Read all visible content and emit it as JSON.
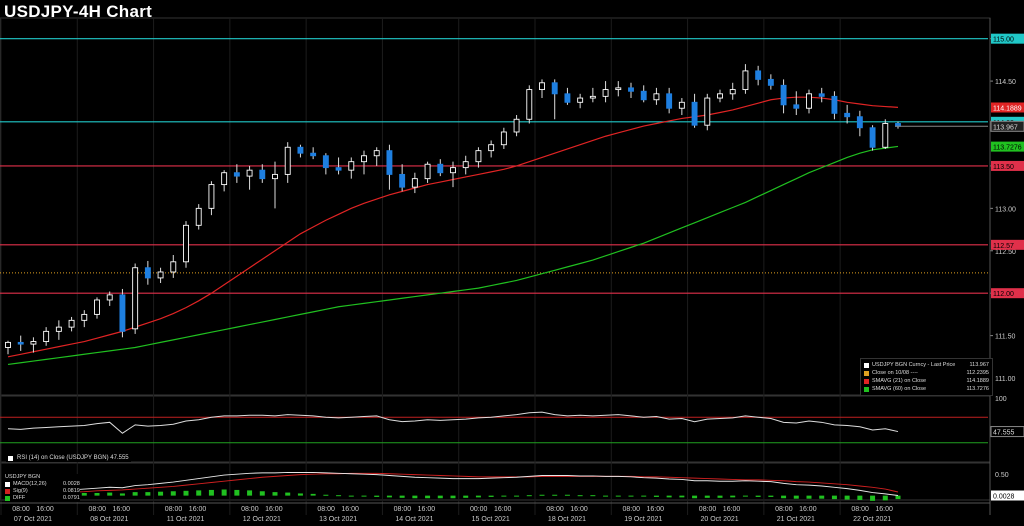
{
  "title": "USDJPY-4H Chart",
  "colors": {
    "bg": "#000000",
    "up": "#ffffff",
    "down": "#1e7fe0",
    "sma21": "#e02424",
    "sma60": "#20c020",
    "hline_red": "#e0304a",
    "hline_cyan": "#20c8c8",
    "dotted": "#e0a020",
    "grid": "#222222",
    "rsi": "#dddddd",
    "macd": "#e8e8e8",
    "signal": "#d02020",
    "diff_pos": "#20c020"
  },
  "legend": [
    {
      "label": "USDJPY BGN Curncy - Last Price",
      "value": "113.967",
      "color": "#ffffff"
    },
    {
      "label": "Close on 10/08 ----",
      "value": "112.2395",
      "color": "#e0a020"
    },
    {
      "label": "SMAVG (21)  on Close",
      "value": "114.1889",
      "color": "#e02424"
    },
    {
      "label": "SMAVG (60)  on Close",
      "value": "113.7276",
      "color": "#20c020"
    }
  ],
  "rsi_legend": {
    "label": "RSI (14)  on Close (USDJPY BGN)",
    "value": "47.555"
  },
  "macd_legend": {
    "title": "USDJPY BGN",
    "rows": [
      {
        "label": "MACD(12,26)",
        "value": "0.0028",
        "color": "#ffffff"
      },
      {
        "label": "Sig(9)",
        "value": "0.0819",
        "color": "#d02020"
      },
      {
        "label": "DIFF",
        "value": "0.0791",
        "color": "#20c020"
      }
    ]
  },
  "chart_data": {
    "type": "candlestick",
    "title": "USDJPY-4H Chart",
    "price_axis": {
      "ylim": [
        110.8,
        115.22
      ],
      "ticks": [
        "115.00",
        "114.50",
        "114.00",
        "113.50",
        "113.00",
        "112.50",
        "112.00",
        "111.50",
        "111.00"
      ]
    },
    "rsi_axis": {
      "ylim": [
        0,
        100
      ],
      "ticks": [
        "100",
        "50"
      ],
      "current": "47.555",
      "upper_band": 70,
      "lower_band": 30
    },
    "macd_axis": {
      "ylim": [
        -0.1,
        0.7
      ],
      "ticks": [
        "0.50",
        "0.00"
      ],
      "current": "0.0028"
    },
    "x_time_labels": [
      "08:00",
      "16:00",
      "08:00",
      "16:00",
      "08:00",
      "16:00",
      "08:00",
      "16:00",
      "08:00",
      "16:00",
      "08:00",
      "16:00",
      "00:00",
      "16:00",
      "08:00",
      "16:00",
      "08:00",
      "16:00",
      "08:00",
      "16:00",
      "08:00",
      "16:00",
      "08:00",
      "16:00"
    ],
    "x_date_labels": [
      "07 Oct 2021",
      "08 Oct 2021",
      "11 Oct 2021",
      "12 Oct 2021",
      "13 Oct 2021",
      "14 Oct 2021",
      "15 Oct 2021",
      "18 Oct 2021",
      "19 Oct 2021",
      "20 Oct 2021",
      "21 Oct 2021",
      "22 Oct 2021"
    ],
    "h_lines": [
      {
        "value": 115.0,
        "label": "115.00",
        "color": "#20c8c8"
      },
      {
        "value": 114.02,
        "label": "114.02",
        "color": "#20c8c8"
      },
      {
        "value": 113.5,
        "label": "113.50",
        "color": "#e0304a"
      },
      {
        "value": 112.57,
        "label": "112.57",
        "color": "#e0304a"
      },
      {
        "value": 112.0,
        "label": "112.00",
        "color": "#e0304a"
      }
    ],
    "dotted_line": {
      "value": 112.2395
    },
    "last_price": {
      "value": 113.967,
      "label": "113.967"
    },
    "sma21_label": {
      "value": 114.1889,
      "label": "114.1889"
    },
    "sma60_label": {
      "value": 113.7276,
      "label": "113.7276"
    },
    "candles": [
      {
        "o": 111.36,
        "h": 111.44,
        "l": 111.28,
        "c": 111.42
      },
      {
        "o": 111.42,
        "h": 111.5,
        "l": 111.32,
        "c": 111.4
      },
      {
        "o": 111.4,
        "h": 111.48,
        "l": 111.3,
        "c": 111.43
      },
      {
        "o": 111.43,
        "h": 111.6,
        "l": 111.38,
        "c": 111.55
      },
      {
        "o": 111.55,
        "h": 111.68,
        "l": 111.45,
        "c": 111.6
      },
      {
        "o": 111.6,
        "h": 111.72,
        "l": 111.55,
        "c": 111.68
      },
      {
        "o": 111.68,
        "h": 111.8,
        "l": 111.6,
        "c": 111.75
      },
      {
        "o": 111.75,
        "h": 111.95,
        "l": 111.7,
        "c": 111.92
      },
      {
        "o": 111.92,
        "h": 112.02,
        "l": 111.85,
        "c": 111.98
      },
      {
        "o": 111.98,
        "h": 112.05,
        "l": 111.48,
        "c": 111.55
      },
      {
        "o": 111.58,
        "h": 112.35,
        "l": 111.52,
        "c": 112.3
      },
      {
        "o": 112.3,
        "h": 112.38,
        "l": 112.1,
        "c": 112.18
      },
      {
        "o": 112.18,
        "h": 112.3,
        "l": 112.12,
        "c": 112.25
      },
      {
        "o": 112.25,
        "h": 112.45,
        "l": 112.18,
        "c": 112.37
      },
      {
        "o": 112.37,
        "h": 112.85,
        "l": 112.3,
        "c": 112.8
      },
      {
        "o": 112.8,
        "h": 113.05,
        "l": 112.75,
        "c": 113.0
      },
      {
        "o": 113.0,
        "h": 113.32,
        "l": 112.92,
        "c": 113.28
      },
      {
        "o": 113.28,
        "h": 113.45,
        "l": 113.2,
        "c": 113.42
      },
      {
        "o": 113.42,
        "h": 113.52,
        "l": 113.3,
        "c": 113.38
      },
      {
        "o": 113.38,
        "h": 113.5,
        "l": 113.22,
        "c": 113.45
      },
      {
        "o": 113.45,
        "h": 113.52,
        "l": 113.3,
        "c": 113.35
      },
      {
        "o": 113.35,
        "h": 113.55,
        "l": 113.0,
        "c": 113.4
      },
      {
        "o": 113.4,
        "h": 113.78,
        "l": 113.3,
        "c": 113.72
      },
      {
        "o": 113.72,
        "h": 113.75,
        "l": 113.6,
        "c": 113.65
      },
      {
        "o": 113.65,
        "h": 113.72,
        "l": 113.58,
        "c": 113.62
      },
      {
        "o": 113.62,
        "h": 113.65,
        "l": 113.4,
        "c": 113.48
      },
      {
        "o": 113.48,
        "h": 113.6,
        "l": 113.4,
        "c": 113.45
      },
      {
        "o": 113.45,
        "h": 113.6,
        "l": 113.35,
        "c": 113.55
      },
      {
        "o": 113.55,
        "h": 113.68,
        "l": 113.4,
        "c": 113.62
      },
      {
        "o": 113.62,
        "h": 113.72,
        "l": 113.5,
        "c": 113.68
      },
      {
        "o": 113.68,
        "h": 113.75,
        "l": 113.22,
        "c": 113.4
      },
      {
        "o": 113.4,
        "h": 113.52,
        "l": 113.2,
        "c": 113.25
      },
      {
        "o": 113.25,
        "h": 113.42,
        "l": 113.18,
        "c": 113.35
      },
      {
        "o": 113.35,
        "h": 113.55,
        "l": 113.3,
        "c": 113.52
      },
      {
        "o": 113.52,
        "h": 113.58,
        "l": 113.38,
        "c": 113.42
      },
      {
        "o": 113.42,
        "h": 113.55,
        "l": 113.25,
        "c": 113.48
      },
      {
        "o": 113.48,
        "h": 113.62,
        "l": 113.4,
        "c": 113.55
      },
      {
        "o": 113.55,
        "h": 113.72,
        "l": 113.48,
        "c": 113.68
      },
      {
        "o": 113.68,
        "h": 113.8,
        "l": 113.6,
        "c": 113.75
      },
      {
        "o": 113.75,
        "h": 113.95,
        "l": 113.7,
        "c": 113.9
      },
      {
        "o": 113.9,
        "h": 114.1,
        "l": 113.85,
        "c": 114.05
      },
      {
        "o": 114.05,
        "h": 114.45,
        "l": 114.0,
        "c": 114.4
      },
      {
        "o": 114.4,
        "h": 114.52,
        "l": 114.3,
        "c": 114.48
      },
      {
        "o": 114.48,
        "h": 114.52,
        "l": 114.05,
        "c": 114.35
      },
      {
        "o": 114.35,
        "h": 114.42,
        "l": 114.22,
        "c": 114.25
      },
      {
        "o": 114.25,
        "h": 114.35,
        "l": 114.18,
        "c": 114.3
      },
      {
        "o": 114.3,
        "h": 114.42,
        "l": 114.25,
        "c": 114.32
      },
      {
        "o": 114.32,
        "h": 114.5,
        "l": 114.25,
        "c": 114.4
      },
      {
        "o": 114.4,
        "h": 114.5,
        "l": 114.32,
        "c": 114.42
      },
      {
        "o": 114.42,
        "h": 114.48,
        "l": 114.3,
        "c": 114.38
      },
      {
        "o": 114.38,
        "h": 114.45,
        "l": 114.25,
        "c": 114.28
      },
      {
        "o": 114.28,
        "h": 114.42,
        "l": 114.22,
        "c": 114.35
      },
      {
        "o": 114.35,
        "h": 114.42,
        "l": 114.12,
        "c": 114.18
      },
      {
        "o": 114.18,
        "h": 114.3,
        "l": 114.1,
        "c": 114.25
      },
      {
        "o": 114.25,
        "h": 114.35,
        "l": 113.95,
        "c": 113.98
      },
      {
        "o": 113.98,
        "h": 114.35,
        "l": 113.92,
        "c": 114.3
      },
      {
        "o": 114.3,
        "h": 114.4,
        "l": 114.25,
        "c": 114.35
      },
      {
        "o": 114.35,
        "h": 114.48,
        "l": 114.28,
        "c": 114.4
      },
      {
        "o": 114.4,
        "h": 114.7,
        "l": 114.35,
        "c": 114.62
      },
      {
        "o": 114.62,
        "h": 114.68,
        "l": 114.45,
        "c": 114.52
      },
      {
        "o": 114.52,
        "h": 114.58,
        "l": 114.4,
        "c": 114.45
      },
      {
        "o": 114.45,
        "h": 114.52,
        "l": 114.12,
        "c": 114.22
      },
      {
        "o": 114.22,
        "h": 114.38,
        "l": 114.1,
        "c": 114.18
      },
      {
        "o": 114.18,
        "h": 114.4,
        "l": 114.12,
        "c": 114.35
      },
      {
        "o": 114.35,
        "h": 114.42,
        "l": 114.25,
        "c": 114.32
      },
      {
        "o": 114.32,
        "h": 114.38,
        "l": 114.05,
        "c": 114.12
      },
      {
        "o": 114.12,
        "h": 114.22,
        "l": 114.0,
        "c": 114.08
      },
      {
        "o": 114.08,
        "h": 114.15,
        "l": 113.85,
        "c": 113.95
      },
      {
        "o": 113.95,
        "h": 113.98,
        "l": 113.68,
        "c": 113.72
      },
      {
        "o": 113.72,
        "h": 114.05,
        "l": 113.7,
        "c": 114.0
      },
      {
        "o": 114.0,
        "h": 114.02,
        "l": 113.94,
        "c": 113.967
      }
    ],
    "sma21": [
      111.25,
      111.28,
      111.31,
      111.34,
      111.37,
      111.4,
      111.43,
      111.47,
      111.51,
      111.55,
      111.6,
      111.65,
      111.7,
      111.76,
      111.83,
      111.91,
      112.0,
      112.1,
      112.2,
      112.3,
      112.4,
      112.5,
      112.6,
      112.7,
      112.78,
      112.86,
      112.93,
      113.0,
      113.06,
      113.11,
      113.16,
      113.2,
      113.24,
      113.28,
      113.31,
      113.34,
      113.37,
      113.4,
      113.43,
      113.46,
      113.5,
      113.55,
      113.6,
      113.65,
      113.7,
      113.75,
      113.8,
      113.85,
      113.89,
      113.93,
      113.97,
      114.0,
      114.03,
      114.06,
      114.08,
      114.1,
      114.13,
      114.16,
      114.2,
      114.24,
      114.28,
      114.3,
      114.31,
      114.31,
      114.3,
      114.28,
      114.25,
      114.23,
      114.21,
      114.2,
      114.19
    ],
    "sma60": [
      111.16,
      111.18,
      111.2,
      111.22,
      111.24,
      111.26,
      111.28,
      111.3,
      111.32,
      111.34,
      111.36,
      111.39,
      111.42,
      111.45,
      111.48,
      111.51,
      111.54,
      111.57,
      111.6,
      111.63,
      111.66,
      111.69,
      111.72,
      111.75,
      111.78,
      111.81,
      111.84,
      111.86,
      111.88,
      111.9,
      111.92,
      111.94,
      111.96,
      111.98,
      112.0,
      112.02,
      112.04,
      112.06,
      112.09,
      112.12,
      112.15,
      112.19,
      112.23,
      112.27,
      112.31,
      112.35,
      112.39,
      112.44,
      112.49,
      112.54,
      112.59,
      112.65,
      112.71,
      112.77,
      112.83,
      112.89,
      112.95,
      113.01,
      113.07,
      113.14,
      113.21,
      113.28,
      113.35,
      113.42,
      113.48,
      113.54,
      113.6,
      113.65,
      113.69,
      113.71,
      113.73
    ],
    "rsi": [
      52,
      51,
      53,
      54,
      55,
      56,
      57,
      60,
      62,
      45,
      58,
      56,
      57,
      59,
      64,
      66,
      70,
      72,
      72,
      73,
      73,
      72,
      74,
      73,
      72,
      70,
      69,
      70,
      71,
      72,
      66,
      63,
      64,
      66,
      65,
      66,
      67,
      69,
      70,
      72,
      74,
      77,
      78,
      74,
      72,
      73,
      72,
      73,
      74,
      72,
      70,
      71,
      67,
      68,
      63,
      67,
      68,
      69,
      72,
      70,
      68,
      62,
      61,
      64,
      62,
      58,
      57,
      55,
      50,
      52,
      47.555
    ],
    "macd": [
      0.03,
      0.05,
      0.07,
      0.09,
      0.11,
      0.13,
      0.15,
      0.17,
      0.19,
      0.18,
      0.23,
      0.25,
      0.28,
      0.31,
      0.35,
      0.39,
      0.43,
      0.47,
      0.49,
      0.51,
      0.52,
      0.52,
      0.53,
      0.53,
      0.53,
      0.52,
      0.51,
      0.5,
      0.49,
      0.48,
      0.46,
      0.44,
      0.42,
      0.41,
      0.4,
      0.39,
      0.39,
      0.39,
      0.4,
      0.41,
      0.42,
      0.44,
      0.46,
      0.46,
      0.46,
      0.45,
      0.45,
      0.44,
      0.44,
      0.43,
      0.41,
      0.4,
      0.38,
      0.37,
      0.34,
      0.34,
      0.33,
      0.33,
      0.34,
      0.33,
      0.32,
      0.28,
      0.25,
      0.24,
      0.22,
      0.19,
      0.16,
      0.12,
      0.07,
      0.04,
      0.0028
    ],
    "signal": [
      0.02,
      0.03,
      0.04,
      0.05,
      0.06,
      0.08,
      0.09,
      0.11,
      0.12,
      0.13,
      0.15,
      0.17,
      0.19,
      0.21,
      0.24,
      0.27,
      0.3,
      0.33,
      0.36,
      0.39,
      0.42,
      0.44,
      0.46,
      0.48,
      0.49,
      0.5,
      0.5,
      0.51,
      0.51,
      0.51,
      0.5,
      0.49,
      0.48,
      0.47,
      0.46,
      0.45,
      0.44,
      0.43,
      0.43,
      0.43,
      0.43,
      0.43,
      0.44,
      0.44,
      0.44,
      0.44,
      0.44,
      0.44,
      0.44,
      0.44,
      0.43,
      0.43,
      0.42,
      0.41,
      0.4,
      0.39,
      0.38,
      0.37,
      0.36,
      0.36,
      0.35,
      0.34,
      0.32,
      0.31,
      0.29,
      0.27,
      0.25,
      0.22,
      0.19,
      0.15,
      0.0819
    ]
  }
}
